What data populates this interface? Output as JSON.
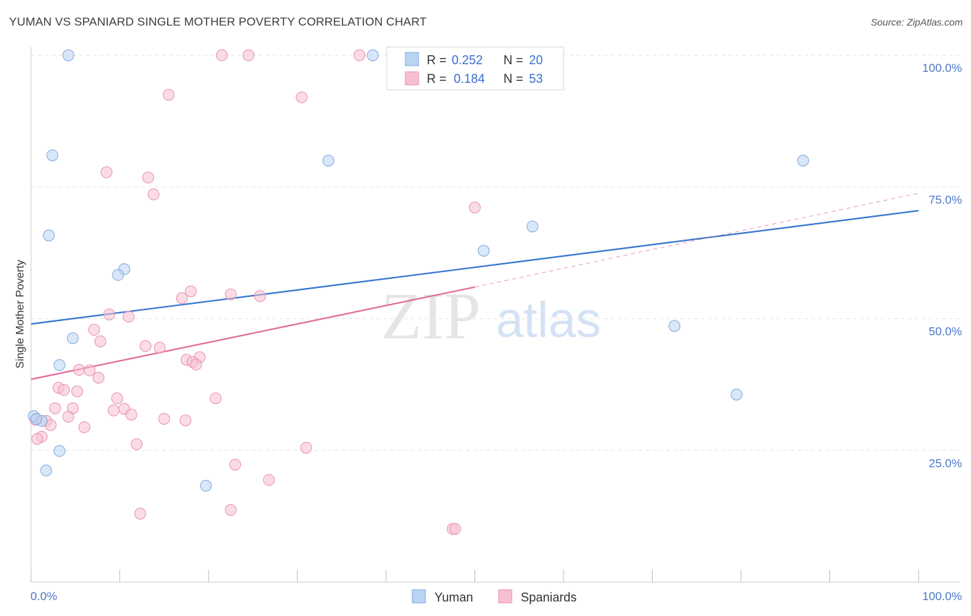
{
  "title": "YUMAN VS SPANIARD SINGLE MOTHER POVERTY CORRELATION CHART",
  "source": "Source: ZipAtlas.com",
  "watermark": {
    "zip": "ZIP",
    "atlas": "atlas"
  },
  "colors": {
    "yuman_fill": "#b9d3f3",
    "yuman_stroke": "#7ea9e0",
    "yuman_line": "#3a78d0",
    "spaniard_fill": "#f7bfcf",
    "spaniard_stroke": "#e892ae",
    "spaniard_line": "#e06f98",
    "axis_label": "#4a77c9",
    "grid": "#e2e2e2"
  },
  "legend": {
    "rows": [
      {
        "r_label": "R =",
        "r_value": "0.252",
        "n_label": "N =",
        "n_value": "20",
        "series": "yuman"
      },
      {
        "r_label": "R =",
        "r_value": "0.184",
        "n_label": "N =",
        "n_value": "53",
        "series": "spaniard"
      }
    ]
  },
  "chart_data": {
    "type": "scatter",
    "title": "YUMAN VS SPANIARD SINGLE MOTHER POVERTY CORRELATION CHART",
    "xlabel": "",
    "ylabel": "Single Mother Poverty",
    "xlim": [
      0,
      100
    ],
    "ylim": [
      0,
      100
    ],
    "x_tick_labels": [
      "0.0%",
      "100.0%"
    ],
    "y_ticks": [
      25,
      50,
      75,
      100
    ],
    "y_tick_labels": [
      "25.0%",
      "50.0%",
      "75.0%",
      "100.0%"
    ],
    "grid": "horizontal dashed",
    "legend_position": "top-center",
    "series": [
      {
        "name": "Yuman",
        "r": 0.252,
        "n": 20,
        "trend": {
          "x": [
            0,
            100
          ],
          "y": [
            49,
            70.5
          ]
        },
        "points": [
          {
            "x": 4.2,
            "y": 100
          },
          {
            "x": 38.5,
            "y": 100
          },
          {
            "x": 2.4,
            "y": 81
          },
          {
            "x": 33.5,
            "y": 80
          },
          {
            "x": 87,
            "y": 80
          },
          {
            "x": 2.0,
            "y": 65.8
          },
          {
            "x": 56.5,
            "y": 67.5
          },
          {
            "x": 51,
            "y": 62.9
          },
          {
            "x": 10.5,
            "y": 59.4
          },
          {
            "x": 9.8,
            "y": 58.3
          },
          {
            "x": 4.7,
            "y": 46.3
          },
          {
            "x": 72.5,
            "y": 48.6
          },
          {
            "x": 3.2,
            "y": 41.2
          },
          {
            "x": 79.5,
            "y": 35.6
          },
          {
            "x": 0.3,
            "y": 31.5
          },
          {
            "x": 1.2,
            "y": 30.6
          },
          {
            "x": 3.2,
            "y": 24.9
          },
          {
            "x": 1.7,
            "y": 21.2
          },
          {
            "x": 19.7,
            "y": 18.3
          },
          {
            "x": 0.6,
            "y": 31.0
          }
        ]
      },
      {
        "name": "Spaniards",
        "r": 0.184,
        "n": 53,
        "trend": {
          "x": [
            0,
            50
          ],
          "y": [
            38.5,
            56.0
          ]
        },
        "trend_dashed": {
          "x": [
            50,
            100
          ],
          "y": [
            56.0,
            73.8
          ]
        },
        "points": [
          {
            "x": 21.5,
            "y": 100
          },
          {
            "x": 24.5,
            "y": 100
          },
          {
            "x": 37,
            "y": 100
          },
          {
            "x": 15.5,
            "y": 92.5
          },
          {
            "x": 30.5,
            "y": 92
          },
          {
            "x": 8.5,
            "y": 77.8
          },
          {
            "x": 13.2,
            "y": 76.8
          },
          {
            "x": 13.8,
            "y": 73.6
          },
          {
            "x": 50,
            "y": 71.1
          },
          {
            "x": 18,
            "y": 55.2
          },
          {
            "x": 22.5,
            "y": 54.6
          },
          {
            "x": 25.8,
            "y": 54.3
          },
          {
            "x": 17,
            "y": 53.9
          },
          {
            "x": 8.8,
            "y": 50.8
          },
          {
            "x": 11,
            "y": 50.4
          },
          {
            "x": 7.1,
            "y": 47.9
          },
          {
            "x": 7.8,
            "y": 45.7
          },
          {
            "x": 12.9,
            "y": 44.8
          },
          {
            "x": 14.5,
            "y": 44.5
          },
          {
            "x": 17.5,
            "y": 42.2
          },
          {
            "x": 19,
            "y": 42.7
          },
          {
            "x": 18.2,
            "y": 41.8
          },
          {
            "x": 18.6,
            "y": 41.3
          },
          {
            "x": 5.4,
            "y": 40.3
          },
          {
            "x": 6.6,
            "y": 40.2
          },
          {
            "x": 7.6,
            "y": 38.8
          },
          {
            "x": 3.1,
            "y": 36.9
          },
          {
            "x": 3.7,
            "y": 36.5
          },
          {
            "x": 5.2,
            "y": 36.2
          },
          {
            "x": 9.7,
            "y": 34.9
          },
          {
            "x": 20.8,
            "y": 34.9
          },
          {
            "x": 2.7,
            "y": 33.0
          },
          {
            "x": 4.7,
            "y": 33.0
          },
          {
            "x": 9.3,
            "y": 32.6
          },
          {
            "x": 10.5,
            "y": 32.9
          },
          {
            "x": 11.3,
            "y": 31.8
          },
          {
            "x": 4.2,
            "y": 31.4
          },
          {
            "x": 15,
            "y": 31.0
          },
          {
            "x": 17.4,
            "y": 30.7
          },
          {
            "x": 1.7,
            "y": 30.6
          },
          {
            "x": 2.2,
            "y": 29.8
          },
          {
            "x": 6.0,
            "y": 29.4
          },
          {
            "x": 0.5,
            "y": 30.8
          },
          {
            "x": 1.2,
            "y": 27.6
          },
          {
            "x": 0.7,
            "y": 27.2
          },
          {
            "x": 11.9,
            "y": 26.2
          },
          {
            "x": 31,
            "y": 25.5
          },
          {
            "x": 23,
            "y": 22.3
          },
          {
            "x": 26.8,
            "y": 19.4
          },
          {
            "x": 22.5,
            "y": 13.7
          },
          {
            "x": 12.3,
            "y": 13.0
          },
          {
            "x": 47.5,
            "y": 10.1
          },
          {
            "x": 47.8,
            "y": 10.1
          }
        ]
      }
    ]
  },
  "bottom_legend": [
    {
      "label": "Yuman",
      "series": "yuman"
    },
    {
      "label": "Spaniards",
      "series": "spaniard"
    }
  ]
}
